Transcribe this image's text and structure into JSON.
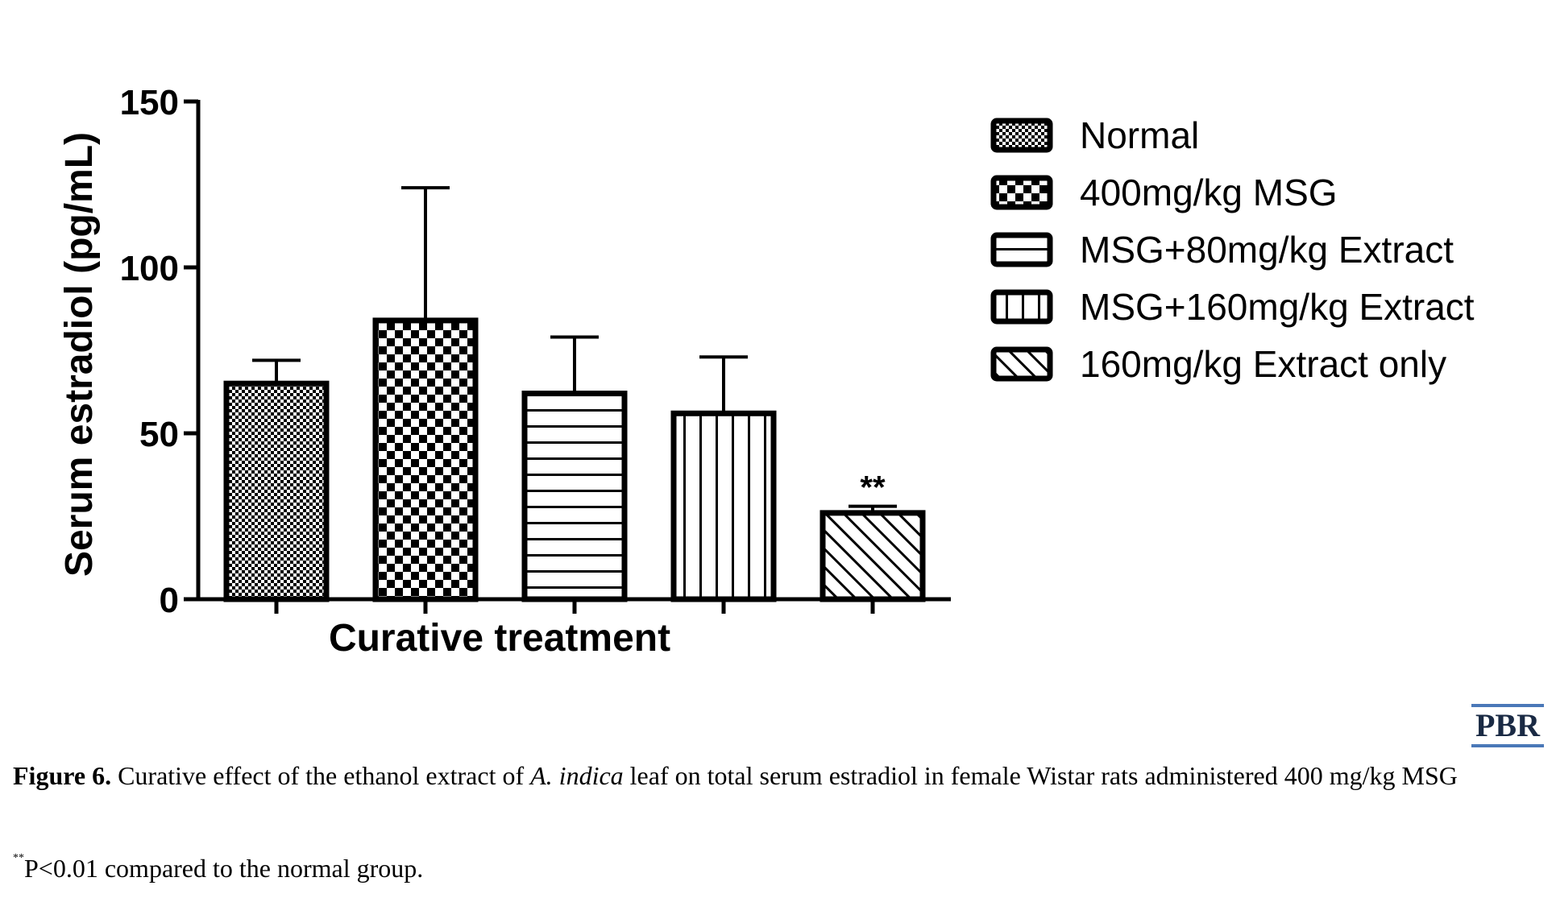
{
  "chart_data": {
    "type": "bar",
    "xlabel": "Curative treatment",
    "ylabel": "Serum estradiol (pg/mL)",
    "ylim": [
      0,
      150
    ],
    "yticks": [
      "0",
      "50",
      "100",
      "150"
    ],
    "legend_position": "right",
    "series": [
      {
        "name": "Normal",
        "value": 65,
        "error": 7,
        "pattern": "fine-checker",
        "annotation": ""
      },
      {
        "name": "400mg/kg MSG",
        "value": 84,
        "error": 40,
        "pattern": "coarse-checker",
        "annotation": ""
      },
      {
        "name": "MSG+80mg/kg Extract",
        "value": 62,
        "error": 17,
        "pattern": "horizontal-lines",
        "annotation": ""
      },
      {
        "name": "MSG+160mg/kg Extract",
        "value": 56,
        "error": 17,
        "pattern": "vertical-lines",
        "annotation": ""
      },
      {
        "name": "160mg/kg Extract only",
        "value": 26,
        "error": 2,
        "pattern": "diagonal-hatch",
        "annotation": "**"
      }
    ]
  },
  "publisher": "PBR",
  "caption": {
    "label": "Figure 6.",
    "text_before": " Curative effect of the ethanol extract of ",
    "species": "A. indica",
    "text_after": " leaf on total serum estradiol in female Wistar rats administered 400 mg/kg MSG"
  },
  "footnote": {
    "mark": "**",
    "text": "P<0.01 compared to the normal group."
  },
  "colors": {
    "bar_stroke": "#000000",
    "logo_rule": "#4a78b8",
    "logo_text": "#1a2a44"
  }
}
